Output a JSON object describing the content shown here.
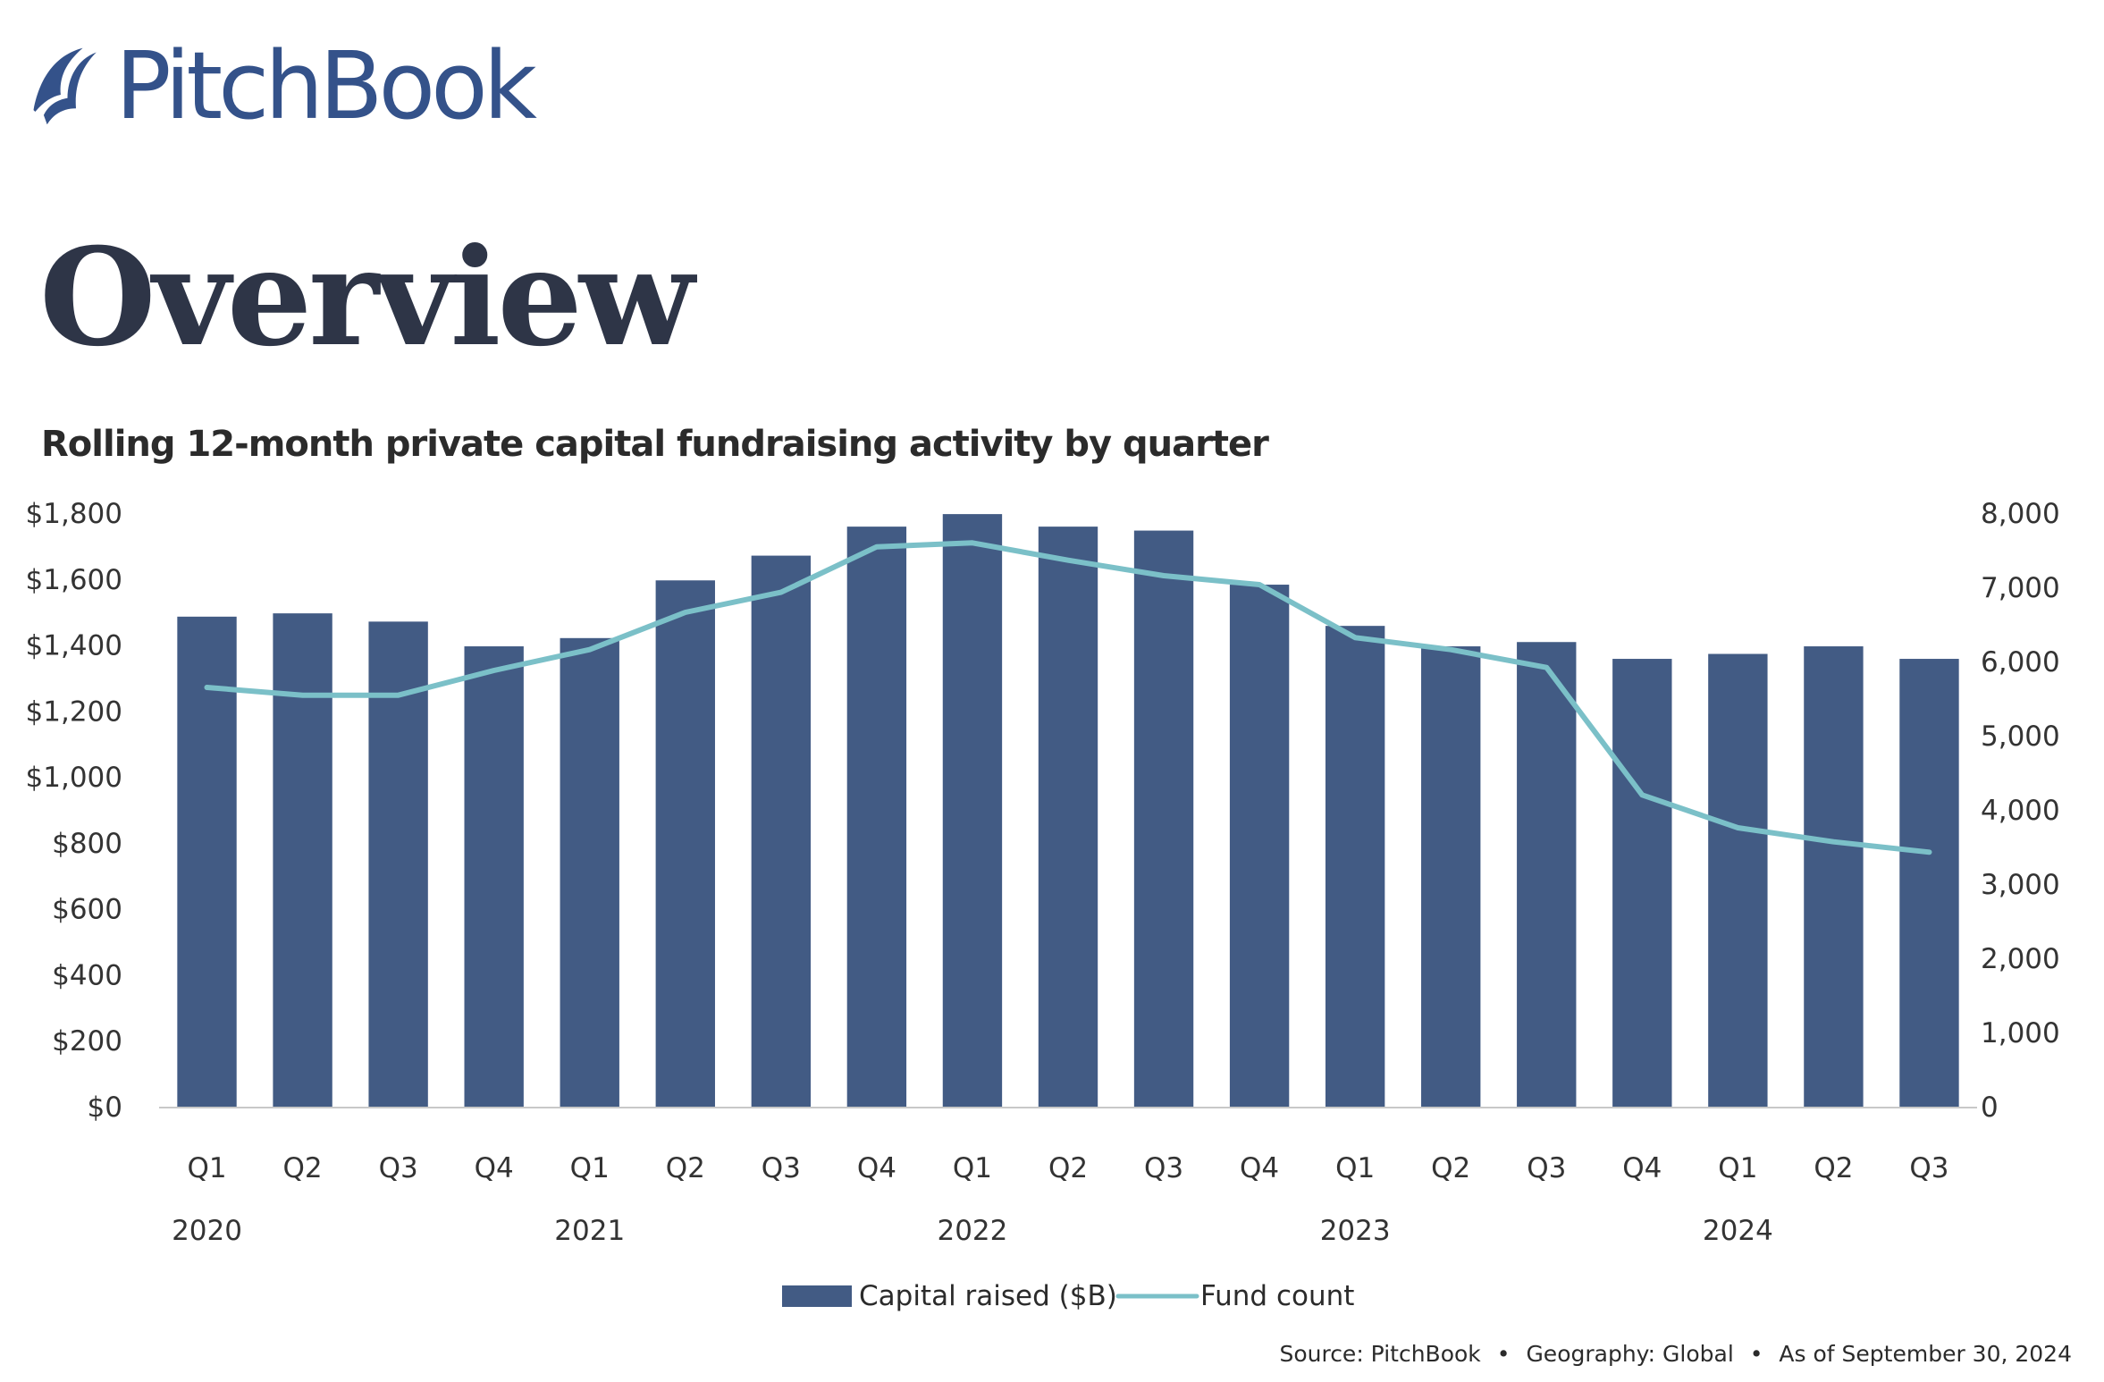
{
  "brand": {
    "name": "PitchBook",
    "logo_icon": "sail-book-icon",
    "color": "#34528a"
  },
  "page": {
    "title": "Overview"
  },
  "footer": {
    "source": "Source: PitchBook",
    "geography": "Geography: Global",
    "as_of": "As of September 30, 2024",
    "separator": "•"
  },
  "chart_data": {
    "type": "bar",
    "title": "Rolling 12-month private capital fundraising activity by quarter",
    "xlabel": "",
    "ylabel": "Capital raised ($B)",
    "y2label": "Fund count",
    "categories": [
      "Q1",
      "Q2",
      "Q3",
      "Q4",
      "Q1",
      "Q2",
      "Q3",
      "Q4",
      "Q1",
      "Q2",
      "Q3",
      "Q4",
      "Q1",
      "Q2",
      "Q3",
      "Q4",
      "Q1",
      "Q2",
      "Q3"
    ],
    "year_labels": [
      {
        "label": "2020",
        "index": 0
      },
      {
        "label": "2021",
        "index": 4
      },
      {
        "label": "2022",
        "index": 8
      },
      {
        "label": "2023",
        "index": 12
      },
      {
        "label": "2024",
        "index": 16
      }
    ],
    "series": [
      {
        "name": "Capital raised ($B)",
        "type": "bar",
        "axis": "left",
        "color": "#425b84",
        "values": [
          1486,
          1496,
          1471,
          1396,
          1421,
          1596,
          1671,
          1759,
          1797,
          1759,
          1747,
          1583,
          1458,
          1396,
          1409,
          1358,
          1373,
          1396,
          1358
        ]
      },
      {
        "name": "Fund count",
        "type": "line",
        "axis": "right",
        "color": "#7bc0c8",
        "values": [
          5650,
          5546,
          5546,
          5880,
          6160,
          6663,
          6932,
          7546,
          7599,
          7365,
          7157,
          7036,
          6322,
          6160,
          5919,
          4201,
          3759,
          3570,
          3430
        ]
      }
    ],
    "ylim": [
      0,
      1800
    ],
    "y2lim": [
      0,
      8000
    ],
    "yticks": [
      "$0",
      "$200",
      "$400",
      "$600",
      "$800",
      "$1,000",
      "$1,200",
      "$1,400",
      "$1,600",
      "$1,800"
    ],
    "y2ticks": [
      "0",
      "1,000",
      "2,000",
      "3,000",
      "4,000",
      "5,000",
      "6,000",
      "7,000",
      "8,000"
    ],
    "grid": false,
    "legend_position": "bottom-center"
  }
}
